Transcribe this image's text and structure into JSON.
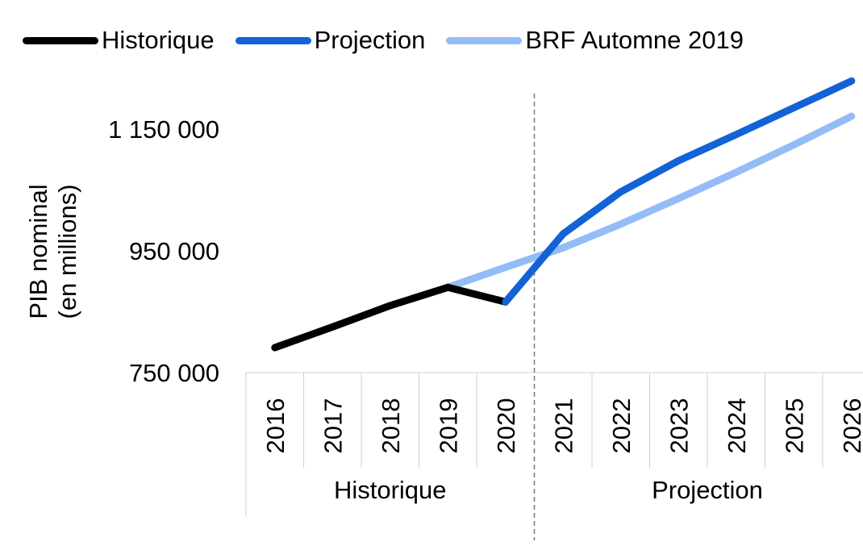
{
  "chart_data": {
    "type": "line",
    "x": [
      "2016",
      "2017",
      "2018",
      "2019",
      "2020",
      "2021",
      "2022",
      "2023",
      "2024",
      "2025",
      "2026"
    ],
    "ylabel": [
      "PIB nominal",
      "(en millions)"
    ],
    "ylim": [
      750000,
      1150000
    ],
    "yticks": [
      {
        "value": 750000,
        "label": "750 000"
      },
      {
        "value": 950000,
        "label": "950 000"
      },
      {
        "value": 1150000,
        "label": "1 150 000"
      }
    ],
    "groups": [
      {
        "label": "Historique",
        "from": "2016",
        "to": "2020"
      },
      {
        "label": "Projection",
        "from": "2021",
        "to": "2026"
      }
    ],
    "divider_between": [
      "2020",
      "2021"
    ],
    "series": [
      {
        "name": "Historique",
        "color": "#000000",
        "points": [
          [
            "2016",
            791000
          ],
          [
            "2017",
            825000
          ],
          [
            "2018",
            860000
          ],
          [
            "2019",
            890000
          ],
          [
            "2020",
            866000
          ]
        ]
      },
      {
        "name": "Projection",
        "color": "#1362d6",
        "points": [
          [
            "2020",
            866000
          ],
          [
            "2021",
            978000
          ],
          [
            "2022",
            1047000
          ],
          [
            "2023",
            1098000
          ],
          [
            "2024",
            1141000
          ],
          [
            "2025",
            1185000
          ],
          [
            "2026",
            1229000
          ]
        ]
      },
      {
        "name": "BRF Automne 2019",
        "color": "#94bcf7",
        "points": [
          [
            "2019",
            890000
          ],
          [
            "2020",
            923000
          ],
          [
            "2021",
            955000
          ],
          [
            "2022",
            994000
          ],
          [
            "2023",
            1036000
          ],
          [
            "2024",
            1079000
          ],
          [
            "2025",
            1124000
          ],
          [
            "2026",
            1171000
          ]
        ]
      }
    ],
    "grid": false,
    "legend_position": "top-left"
  }
}
